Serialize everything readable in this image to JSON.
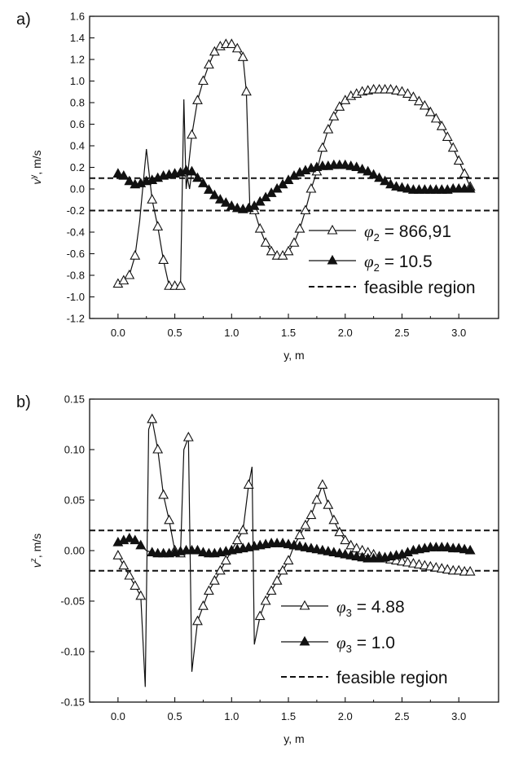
{
  "chart_data": [
    {
      "type": "line",
      "panel_label": "a)",
      "xlabel": "y, m",
      "ylabel": "v",
      "ylabel_sup": "y",
      "ylabel_unit": ", m/s",
      "xlim": [
        -0.25,
        3.35
      ],
      "ylim": [
        -1.2,
        1.6
      ],
      "xticks": [
        0.0,
        0.5,
        1.0,
        1.5,
        2.0,
        2.5,
        3.0
      ],
      "xtick_labels": [
        "0.0",
        "0.5",
        "1.0",
        "1.5",
        "2.0",
        "2.5",
        "3.0"
      ],
      "yticks": [
        -1.2,
        -1.0,
        -0.8,
        -0.6,
        -0.4,
        -0.2,
        0.0,
        0.2,
        0.4,
        0.6,
        0.8,
        1.0,
        1.2,
        1.4,
        1.6
      ],
      "ytick_labels": [
        "-1.2",
        "-1.0",
        "-0.8",
        "-0.6",
        "-0.4",
        "-0.2",
        "0.0",
        "0.2",
        "0.4",
        "0.6",
        "0.8",
        "1.0",
        "1.2",
        "1.4",
        "1.6"
      ],
      "grid": false,
      "legend_position": "bottom-right",
      "feasible_region": [
        -0.2,
        0.1
      ],
      "series": [
        {
          "legend_symbol": "φ",
          "legend_sub": "2",
          "legend_value": " = 866,91",
          "marker": "open-triangle",
          "x": [
            0.0,
            0.05,
            0.1,
            0.15,
            0.19,
            0.25,
            0.3,
            0.35,
            0.4,
            0.45,
            0.5,
            0.55,
            0.58,
            0.6,
            0.65,
            0.7,
            0.75,
            0.8,
            0.85,
            0.9,
            0.95,
            1.0,
            1.05,
            1.1,
            1.13,
            1.16,
            1.2,
            1.25,
            1.3,
            1.35,
            1.4,
            1.45,
            1.5,
            1.55,
            1.6,
            1.65,
            1.7,
            1.75,
            1.8,
            1.85,
            1.9,
            1.95,
            2.0,
            2.05,
            2.1,
            2.15,
            2.2,
            2.25,
            2.3,
            2.35,
            2.4,
            2.45,
            2.5,
            2.55,
            2.6,
            2.65,
            2.7,
            2.75,
            2.8,
            2.85,
            2.9,
            2.95,
            3.0,
            3.05,
            3.1
          ],
          "y": [
            -0.88,
            -0.85,
            -0.8,
            -0.62,
            -0.3,
            0.37,
            -0.1,
            -0.35,
            -0.66,
            -0.9,
            -0.9,
            -0.9,
            0.83,
            0.0,
            0.5,
            0.82,
            1.0,
            1.15,
            1.27,
            1.32,
            1.34,
            1.34,
            1.3,
            1.22,
            0.9,
            -0.15,
            -0.2,
            -0.37,
            -0.5,
            -0.58,
            -0.62,
            -0.62,
            -0.58,
            -0.5,
            -0.37,
            -0.2,
            0.0,
            0.16,
            0.38,
            0.55,
            0.67,
            0.76,
            0.82,
            0.86,
            0.88,
            0.9,
            0.91,
            0.92,
            0.92,
            0.92,
            0.92,
            0.91,
            0.9,
            0.88,
            0.85,
            0.81,
            0.77,
            0.71,
            0.65,
            0.58,
            0.48,
            0.38,
            0.26,
            0.14,
            0.02
          ],
          "markers": [
            0,
            1,
            2,
            3,
            6,
            7,
            8,
            9,
            10,
            11,
            14,
            15,
            16,
            17,
            18,
            19,
            20,
            21,
            22,
            23,
            24,
            26,
            27,
            28,
            29,
            30,
            31,
            32,
            33,
            34,
            35,
            36,
            37,
            38,
            39,
            40,
            41,
            42,
            43,
            44,
            45,
            46,
            47,
            48,
            49,
            50,
            51,
            52,
            53,
            54,
            55,
            56,
            57,
            58,
            59,
            60,
            61,
            62,
            63,
            64
          ]
        },
        {
          "legend_symbol": "φ",
          "legend_sub": "2",
          "legend_value": " = 10.5",
          "marker": "filled-triangle",
          "x": [
            0.0,
            0.05,
            0.1,
            0.15,
            0.2,
            0.25,
            0.3,
            0.35,
            0.4,
            0.45,
            0.5,
            0.55,
            0.6,
            0.63,
            0.65,
            0.7,
            0.75,
            0.8,
            0.85,
            0.9,
            0.95,
            1.0,
            1.05,
            1.1,
            1.15,
            1.2,
            1.25,
            1.3,
            1.35,
            1.4,
            1.45,
            1.5,
            1.55,
            1.6,
            1.65,
            1.7,
            1.75,
            1.8,
            1.85,
            1.9,
            1.95,
            2.0,
            2.05,
            2.1,
            2.15,
            2.2,
            2.25,
            2.3,
            2.35,
            2.4,
            2.45,
            2.5,
            2.55,
            2.6,
            2.65,
            2.7,
            2.75,
            2.8,
            2.85,
            2.9,
            2.95,
            3.0,
            3.05,
            3.1
          ],
          "y": [
            0.14,
            0.12,
            0.07,
            0.04,
            0.05,
            0.07,
            0.08,
            0.1,
            0.12,
            0.13,
            0.14,
            0.15,
            0.17,
            0.0,
            0.16,
            0.1,
            0.05,
            -0.01,
            -0.06,
            -0.1,
            -0.13,
            -0.16,
            -0.18,
            -0.19,
            -0.18,
            -0.16,
            -0.12,
            -0.08,
            -0.04,
            0.0,
            0.04,
            0.08,
            0.12,
            0.15,
            0.17,
            0.19,
            0.2,
            0.21,
            0.21,
            0.22,
            0.22,
            0.22,
            0.21,
            0.2,
            0.18,
            0.16,
            0.13,
            0.1,
            0.07,
            0.04,
            0.02,
            0.01,
            0.0,
            -0.01,
            -0.01,
            -0.01,
            -0.01,
            -0.01,
            -0.01,
            -0.01,
            0.0,
            0.0,
            0.0,
            0.0
          ],
          "markers": [
            0,
            1,
            2,
            3,
            4,
            5,
            6,
            7,
            8,
            9,
            10,
            11,
            12,
            14,
            15,
            16,
            17,
            18,
            19,
            20,
            21,
            22,
            23,
            24,
            25,
            26,
            27,
            28,
            29,
            30,
            31,
            32,
            33,
            34,
            35,
            36,
            37,
            38,
            39,
            40,
            41,
            42,
            43,
            44,
            45,
            46,
            47,
            48,
            49,
            50,
            51,
            52,
            53,
            54,
            55,
            56,
            57,
            58,
            59,
            60,
            61,
            62,
            63
          ]
        }
      ],
      "dashed_legend_label": "feasible region"
    },
    {
      "type": "line",
      "panel_label": "b)",
      "xlabel": "y, m",
      "ylabel": "v",
      "ylabel_sup": "z",
      "ylabel_unit": ", m/s",
      "xlim": [
        -0.25,
        3.35
      ],
      "ylim": [
        -0.15,
        0.15
      ],
      "xticks": [
        0.0,
        0.5,
        1.0,
        1.5,
        2.0,
        2.5,
        3.0
      ],
      "xtick_labels": [
        "0.0",
        "0.5",
        "1.0",
        "1.5",
        "2.0",
        "2.5",
        "3.0"
      ],
      "yticks": [
        -0.15,
        -0.1,
        -0.05,
        0.0,
        0.05,
        0.1,
        0.15
      ],
      "ytick_labels": [
        "-0.15",
        "-0.10",
        "-0.05",
        "0.00",
        "0.05",
        "0.10",
        "0.15"
      ],
      "grid": false,
      "legend_position": "bottom-right",
      "feasible_region": [
        -0.02,
        0.02
      ],
      "series": [
        {
          "legend_symbol": "φ",
          "legend_sub": "3",
          "legend_value": " = 4.88",
          "marker": "open-triangle",
          "x": [
            0.0,
            0.05,
            0.1,
            0.15,
            0.2,
            0.24,
            0.27,
            0.3,
            0.35,
            0.4,
            0.45,
            0.5,
            0.55,
            0.58,
            0.62,
            0.65,
            0.7,
            0.75,
            0.8,
            0.85,
            0.9,
            0.95,
            1.0,
            1.05,
            1.1,
            1.15,
            1.18,
            1.2,
            1.25,
            1.3,
            1.35,
            1.4,
            1.45,
            1.5,
            1.55,
            1.6,
            1.65,
            1.7,
            1.75,
            1.8,
            1.85,
            1.9,
            1.95,
            2.0,
            2.05,
            2.1,
            2.15,
            2.2,
            2.25,
            2.3,
            2.35,
            2.4,
            2.45,
            2.5,
            2.55,
            2.6,
            2.65,
            2.7,
            2.75,
            2.8,
            2.85,
            2.9,
            2.95,
            3.0,
            3.05,
            3.1
          ],
          "y": [
            -0.005,
            -0.015,
            -0.025,
            -0.035,
            -0.045,
            -0.135,
            0.12,
            0.13,
            0.1,
            0.055,
            0.03,
            0.0,
            -0.003,
            0.1,
            0.112,
            -0.12,
            -0.07,
            -0.055,
            -0.04,
            -0.03,
            -0.02,
            -0.01,
            0.0,
            0.01,
            0.02,
            0.065,
            0.083,
            -0.093,
            -0.065,
            -0.05,
            -0.04,
            -0.03,
            -0.02,
            -0.01,
            0.005,
            0.015,
            0.025,
            0.035,
            0.05,
            0.065,
            0.045,
            0.03,
            0.018,
            0.01,
            0.005,
            0.002,
            0.0,
            -0.002,
            -0.004,
            -0.006,
            -0.008,
            -0.009,
            -0.01,
            -0.011,
            -0.012,
            -0.013,
            -0.014,
            -0.015,
            -0.016,
            -0.017,
            -0.018,
            -0.019,
            -0.02,
            -0.02,
            -0.021,
            -0.021
          ],
          "markers": [
            0,
            1,
            2,
            3,
            4,
            7,
            8,
            9,
            10,
            11,
            12,
            14,
            16,
            17,
            18,
            19,
            20,
            21,
            22,
            23,
            24,
            25,
            28,
            29,
            30,
            31,
            32,
            33,
            34,
            35,
            36,
            37,
            38,
            39,
            40,
            41,
            42,
            43,
            44,
            45,
            46,
            47,
            48,
            49,
            50,
            51,
            52,
            53,
            54,
            55,
            56,
            57,
            58,
            59,
            60,
            61,
            62,
            63,
            64,
            65
          ]
        },
        {
          "legend_symbol": "φ",
          "legend_sub": "3",
          "legend_value": " = 1.0",
          "marker": "filled-triangle",
          "x": [
            0.0,
            0.05,
            0.1,
            0.15,
            0.2,
            0.25,
            0.3,
            0.35,
            0.4,
            0.45,
            0.5,
            0.55,
            0.6,
            0.65,
            0.7,
            0.75,
            0.8,
            0.85,
            0.9,
            0.95,
            1.0,
            1.05,
            1.1,
            1.15,
            1.2,
            1.25,
            1.3,
            1.35,
            1.4,
            1.45,
            1.5,
            1.55,
            1.6,
            1.65,
            1.7,
            1.75,
            1.8,
            1.85,
            1.9,
            1.95,
            2.0,
            2.05,
            2.1,
            2.15,
            2.2,
            2.25,
            2.3,
            2.35,
            2.4,
            2.45,
            2.5,
            2.55,
            2.6,
            2.65,
            2.7,
            2.75,
            2.8,
            2.85,
            2.9,
            2.95,
            3.0,
            3.05,
            3.1
          ],
          "y": [
            0.008,
            0.01,
            0.012,
            0.01,
            0.005,
            0.0,
            -0.002,
            -0.003,
            -0.003,
            -0.003,
            -0.002,
            -0.001,
            0.0,
            0.0,
            0.0,
            -0.002,
            -0.003,
            -0.003,
            -0.002,
            -0.001,
            0.0,
            0.001,
            0.002,
            0.003,
            0.004,
            0.005,
            0.006,
            0.007,
            0.007,
            0.007,
            0.006,
            0.005,
            0.004,
            0.003,
            0.002,
            0.001,
            0.0,
            -0.001,
            -0.002,
            -0.003,
            -0.004,
            -0.005,
            -0.006,
            -0.007,
            -0.008,
            -0.008,
            -0.008,
            -0.007,
            -0.006,
            -0.005,
            -0.004,
            -0.002,
            0.0,
            0.001,
            0.002,
            0.003,
            0.003,
            0.003,
            0.003,
            0.002,
            0.002,
            0.001,
            0.0
          ],
          "markers": [
            0,
            1,
            2,
            3,
            4,
            6,
            7,
            8,
            9,
            10,
            11,
            12,
            13,
            14,
            15,
            16,
            17,
            18,
            19,
            20,
            21,
            22,
            23,
            24,
            25,
            26,
            27,
            28,
            29,
            30,
            31,
            32,
            33,
            34,
            35,
            36,
            37,
            38,
            39,
            40,
            41,
            42,
            43,
            44,
            45,
            46,
            47,
            48,
            49,
            50,
            51,
            52,
            53,
            54,
            55,
            56,
            57,
            58,
            59,
            60,
            61,
            62
          ]
        }
      ],
      "dashed_legend_label": "feasible region"
    }
  ]
}
